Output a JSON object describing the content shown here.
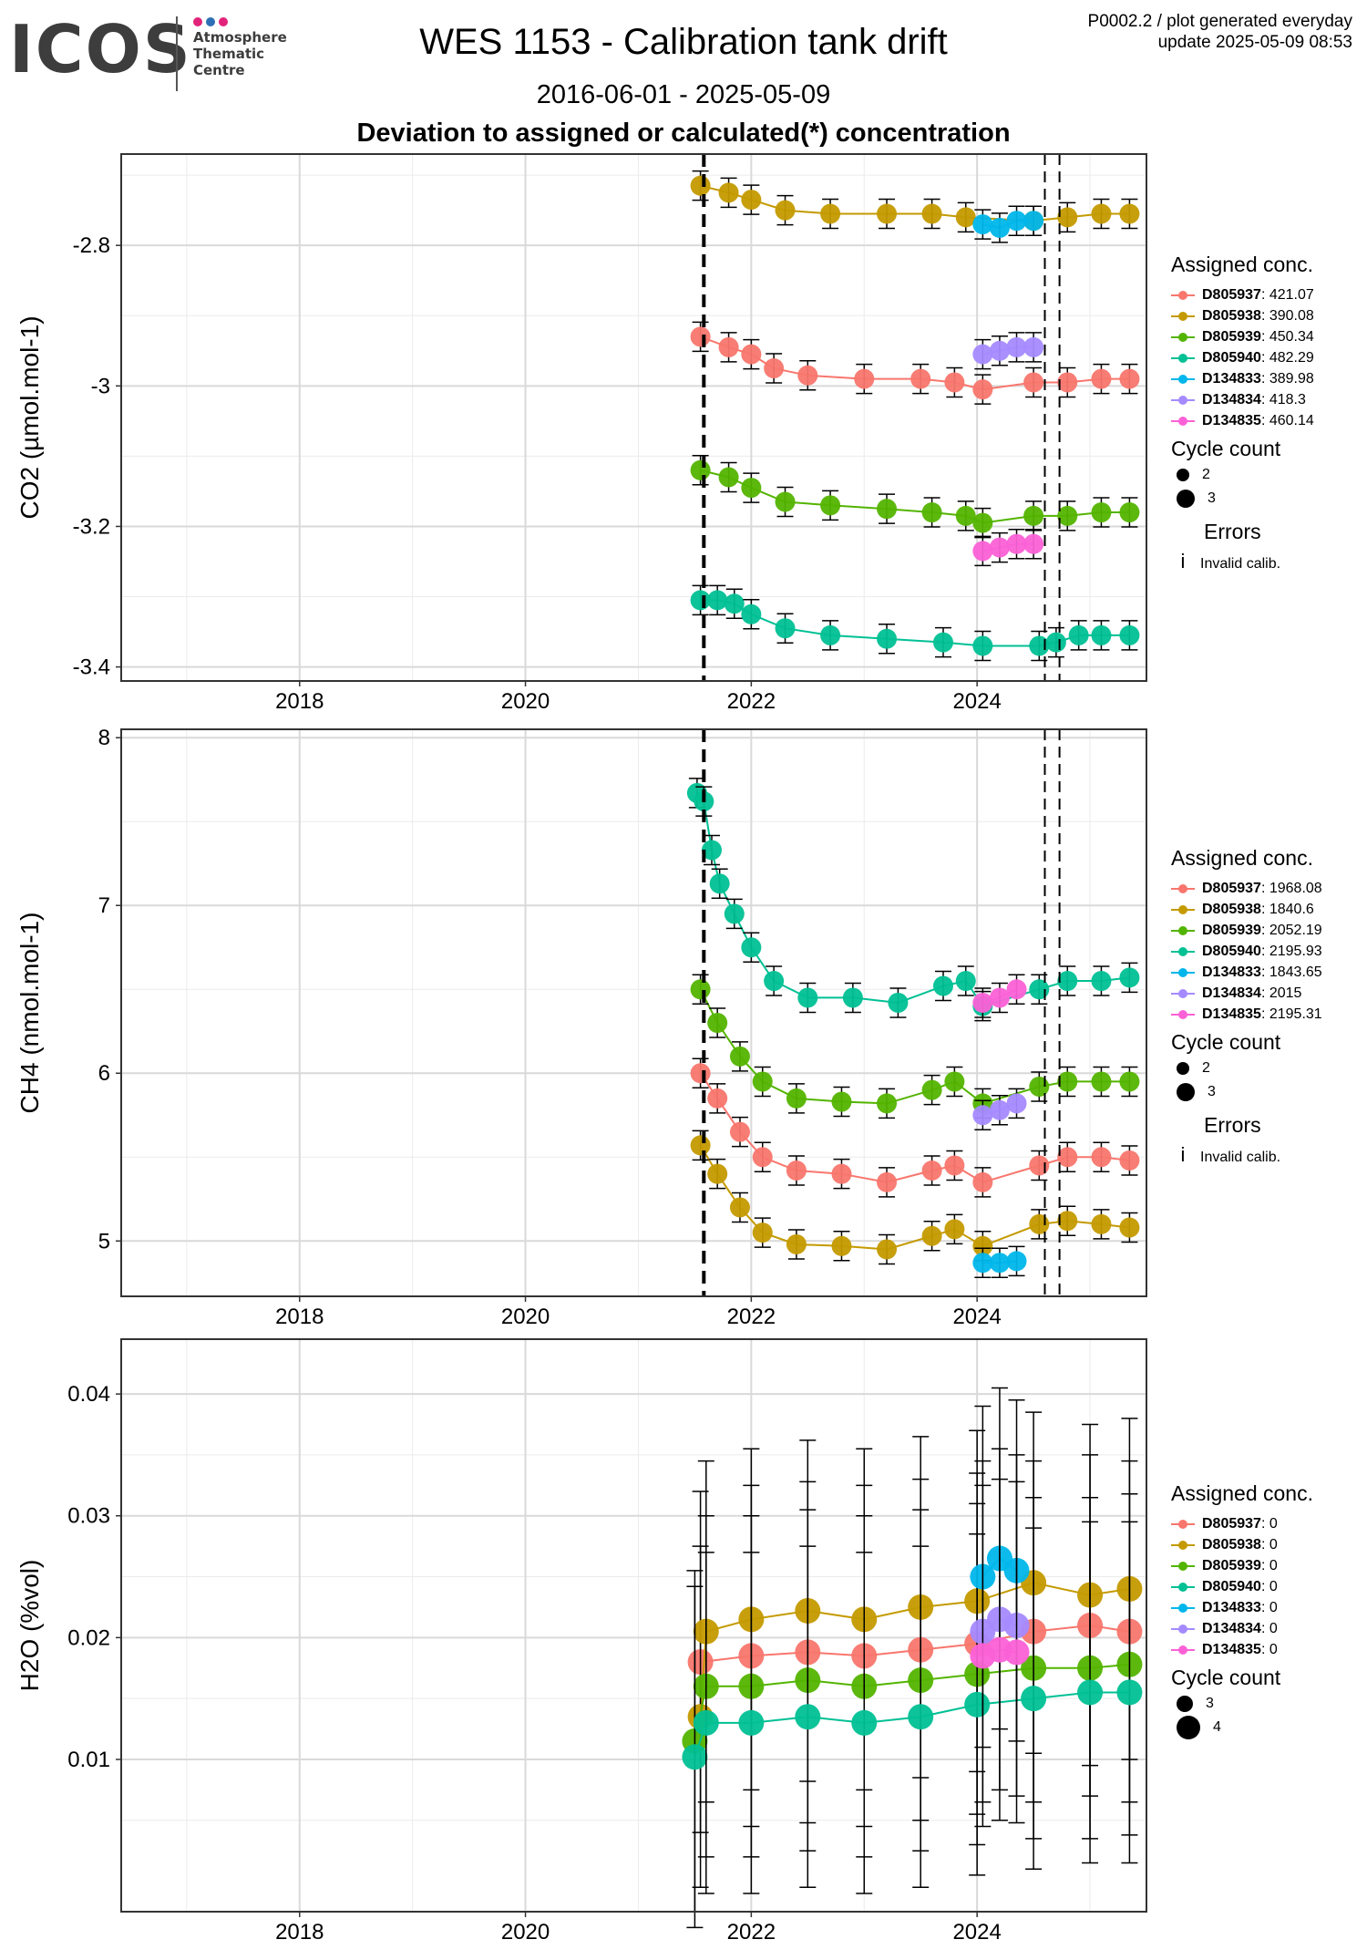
{
  "header": {
    "logo_text": "ICOS",
    "logo_sub": [
      "Atmosphere",
      "Thematic",
      "Centre"
    ],
    "title": "WES 1153 - Calibration tank drift",
    "date_range": "2016-06-01 - 2025-05-09",
    "subtitle": "Deviation to assigned or calculated(*) concentration",
    "info_line1": "P0002.2 / plot generated everyday",
    "info_line2": "update  2025-05-09 08:53"
  },
  "colors": {
    "D805937": "#F8766D",
    "D805938": "#C49A00",
    "D805939": "#53B400",
    "D805940": "#00C094",
    "D134833": "#00B6EB",
    "D134834": "#A58AFF",
    "D134835": "#FB61D7"
  },
  "chart_data": [
    {
      "type": "scatter",
      "id": "co2",
      "ylabel": "CO2 (µmol.mol-1)",
      "xticks": [
        2018,
        2020,
        2022,
        2024
      ],
      "yticks": [
        -2.8,
        -3.0,
        -3.2,
        -3.4
      ],
      "xlim": [
        2016.42,
        2025.5
      ],
      "ylim": [
        -3.42,
        -2.67
      ],
      "vlines": [
        {
          "x": 2021.58,
          "style": "thick"
        },
        {
          "x": 2024.6,
          "style": "thin"
        },
        {
          "x": 2024.73,
          "style": "thin"
        }
      ],
      "legend_title": "Assigned conc.",
      "cycle_title": "Cycle count",
      "cycle_values": [
        "2",
        "3"
      ],
      "errors_title": "Errors",
      "errors_glyph": "i",
      "errors_label": "Invalid calib.",
      "series": [
        {
          "name": "D805937",
          "assigned": "421.07",
          "points": [
            [
              2021.55,
              -2.93
            ],
            [
              2021.8,
              -2.945
            ],
            [
              2022.0,
              -2.955
            ],
            [
              2022.2,
              -2.975
            ],
            [
              2022.5,
              -2.985
            ],
            [
              2023.0,
              -2.99
            ],
            [
              2023.5,
              -2.99
            ],
            [
              2023.8,
              -2.995
            ],
            [
              2024.05,
              -3.005
            ],
            [
              2024.5,
              -2.995
            ],
            [
              2024.8,
              -2.995
            ],
            [
              2025.1,
              -2.99
            ],
            [
              2025.35,
              -2.99
            ]
          ]
        },
        {
          "name": "D805938",
          "assigned": "390.08",
          "points": [
            [
              2021.55,
              -2.715
            ],
            [
              2021.8,
              -2.725
            ],
            [
              2022.0,
              -2.735
            ],
            [
              2022.3,
              -2.75
            ],
            [
              2022.7,
              -2.755
            ],
            [
              2023.2,
              -2.755
            ],
            [
              2023.6,
              -2.755
            ],
            [
              2023.9,
              -2.76
            ],
            [
              2024.5,
              -2.765
            ],
            [
              2024.8,
              -2.76
            ],
            [
              2025.1,
              -2.755
            ],
            [
              2025.35,
              -2.755
            ]
          ]
        },
        {
          "name": "D805939",
          "assigned": "450.34",
          "points": [
            [
              2021.55,
              -3.12
            ],
            [
              2021.8,
              -3.13
            ],
            [
              2022.0,
              -3.145
            ],
            [
              2022.3,
              -3.165
            ],
            [
              2022.7,
              -3.17
            ],
            [
              2023.2,
              -3.175
            ],
            [
              2023.6,
              -3.18
            ],
            [
              2023.9,
              -3.185
            ],
            [
              2024.05,
              -3.195
            ],
            [
              2024.5,
              -3.185
            ],
            [
              2024.8,
              -3.185
            ],
            [
              2025.1,
              -3.18
            ],
            [
              2025.35,
              -3.18
            ]
          ]
        },
        {
          "name": "D805940",
          "assigned": "482.29",
          "points": [
            [
              2021.55,
              -3.305
            ],
            [
              2021.7,
              -3.305
            ],
            [
              2021.85,
              -3.31
            ],
            [
              2022.0,
              -3.325
            ],
            [
              2022.3,
              -3.345
            ],
            [
              2022.7,
              -3.355
            ],
            [
              2023.2,
              -3.36
            ],
            [
              2023.7,
              -3.365
            ],
            [
              2024.05,
              -3.37
            ],
            [
              2024.55,
              -3.37
            ],
            [
              2024.7,
              -3.365
            ],
            [
              2024.9,
              -3.355
            ],
            [
              2025.1,
              -3.355
            ],
            [
              2025.35,
              -3.355
            ]
          ]
        },
        {
          "name": "D134833",
          "assigned": "389.98",
          "points": [
            [
              2024.05,
              -2.77
            ],
            [
              2024.2,
              -2.775
            ],
            [
              2024.35,
              -2.765
            ],
            [
              2024.5,
              -2.765
            ]
          ]
        },
        {
          "name": "D134834",
          "assigned": "418.3",
          "points": [
            [
              2024.05,
              -2.955
            ],
            [
              2024.2,
              -2.95
            ],
            [
              2024.35,
              -2.945
            ],
            [
              2024.5,
              -2.945
            ]
          ]
        },
        {
          "name": "D134835",
          "assigned": "460.14",
          "points": [
            [
              2024.05,
              -3.235
            ],
            [
              2024.2,
              -3.23
            ],
            [
              2024.35,
              -3.225
            ],
            [
              2024.5,
              -3.225
            ]
          ]
        }
      ]
    },
    {
      "type": "scatter",
      "id": "ch4",
      "ylabel": "CH4 (nmol.mol-1)",
      "xticks": [
        2018,
        2020,
        2022,
        2024
      ],
      "yticks": [
        8,
        7,
        6,
        5
      ],
      "xlim": [
        2016.42,
        2025.5
      ],
      "ylim": [
        4.67,
        8.05
      ],
      "vlines": [
        {
          "x": 2021.58,
          "style": "thick"
        },
        {
          "x": 2024.6,
          "style": "thin"
        },
        {
          "x": 2024.73,
          "style": "thin"
        }
      ],
      "legend_title": "Assigned conc.",
      "cycle_title": "Cycle count",
      "cycle_values": [
        "2",
        "3"
      ],
      "errors_title": "Errors",
      "errors_glyph": "i",
      "errors_label": "Invalid calib.",
      "series": [
        {
          "name": "D805937",
          "assigned": "1968.08",
          "points": [
            [
              2021.55,
              6.0
            ],
            [
              2021.7,
              5.85
            ],
            [
              2021.9,
              5.65
            ],
            [
              2022.1,
              5.5
            ],
            [
              2022.4,
              5.42
            ],
            [
              2022.8,
              5.4
            ],
            [
              2023.2,
              5.35
            ],
            [
              2023.6,
              5.42
            ],
            [
              2023.8,
              5.45
            ],
            [
              2024.05,
              5.35
            ],
            [
              2024.55,
              5.45
            ],
            [
              2024.8,
              5.5
            ],
            [
              2025.1,
              5.5
            ],
            [
              2025.35,
              5.48
            ]
          ]
        },
        {
          "name": "D805938",
          "assigned": "1840.6",
          "points": [
            [
              2021.55,
              5.57
            ],
            [
              2021.7,
              5.4
            ],
            [
              2021.9,
              5.2
            ],
            [
              2022.1,
              5.05
            ],
            [
              2022.4,
              4.98
            ],
            [
              2022.8,
              4.97
            ],
            [
              2023.2,
              4.95
            ],
            [
              2023.6,
              5.03
            ],
            [
              2023.8,
              5.07
            ],
            [
              2024.05,
              4.97
            ],
            [
              2024.55,
              5.1
            ],
            [
              2024.8,
              5.12
            ],
            [
              2025.1,
              5.1
            ],
            [
              2025.35,
              5.08
            ]
          ]
        },
        {
          "name": "D805939",
          "assigned": "2052.19",
          "points": [
            [
              2021.55,
              6.5
            ],
            [
              2021.7,
              6.3
            ],
            [
              2021.9,
              6.1
            ],
            [
              2022.1,
              5.95
            ],
            [
              2022.4,
              5.85
            ],
            [
              2022.8,
              5.83
            ],
            [
              2023.2,
              5.82
            ],
            [
              2023.6,
              5.9
            ],
            [
              2023.8,
              5.95
            ],
            [
              2024.05,
              5.82
            ],
            [
              2024.55,
              5.92
            ],
            [
              2024.8,
              5.95
            ],
            [
              2025.1,
              5.95
            ],
            [
              2025.35,
              5.95
            ]
          ]
        },
        {
          "name": "D805940",
          "assigned": "2195.93",
          "points": [
            [
              2021.52,
              7.67
            ],
            [
              2021.58,
              7.62
            ],
            [
              2021.65,
              7.33
            ],
            [
              2021.72,
              7.13
            ],
            [
              2021.85,
              6.95
            ],
            [
              2022.0,
              6.75
            ],
            [
              2022.2,
              6.55
            ],
            [
              2022.5,
              6.45
            ],
            [
              2022.9,
              6.45
            ],
            [
              2023.3,
              6.42
            ],
            [
              2023.7,
              6.52
            ],
            [
              2023.9,
              6.55
            ],
            [
              2024.05,
              6.4
            ],
            [
              2024.55,
              6.5
            ],
            [
              2024.8,
              6.55
            ],
            [
              2025.1,
              6.55
            ],
            [
              2025.35,
              6.57
            ]
          ]
        },
        {
          "name": "D134833",
          "assigned": "1843.65",
          "points": [
            [
              2024.05,
              4.87
            ],
            [
              2024.2,
              4.87
            ],
            [
              2024.35,
              4.88
            ]
          ]
        },
        {
          "name": "D134834",
          "assigned": "2015",
          "points": [
            [
              2024.05,
              5.75
            ],
            [
              2024.2,
              5.78
            ],
            [
              2024.35,
              5.82
            ]
          ]
        },
        {
          "name": "D134835",
          "assigned": "2195.31",
          "points": [
            [
              2024.05,
              6.42
            ],
            [
              2024.2,
              6.45
            ],
            [
              2024.35,
              6.5
            ]
          ]
        }
      ]
    },
    {
      "type": "scatter",
      "id": "h2o",
      "ylabel": "H2O (%vol)",
      "xticks": [
        2018,
        2020,
        2022,
        2024
      ],
      "yticks": [
        0.04,
        0.03,
        0.02,
        0.01
      ],
      "xlim": [
        2016.42,
        2025.5
      ],
      "ylim": [
        -0.0025,
        0.0445
      ],
      "vlines": [],
      "legend_title": "Assigned conc.",
      "cycle_title": "Cycle count",
      "cycle_values": [
        "3",
        "4"
      ],
      "series": [
        {
          "name": "D805937",
          "assigned": "0",
          "points": [
            [
              2021.55,
              0.018
            ],
            [
              2022.0,
              0.0185
            ],
            [
              2022.5,
              0.0188
            ],
            [
              2023.0,
              0.0185
            ],
            [
              2023.5,
              0.019
            ],
            [
              2024.0,
              0.0195
            ],
            [
              2024.5,
              0.0205
            ],
            [
              2025.0,
              0.021
            ],
            [
              2025.35,
              0.0205
            ]
          ]
        },
        {
          "name": "D805938",
          "assigned": "0",
          "points": [
            [
              2021.55,
              0.0135
            ],
            [
              2021.6,
              0.0205
            ],
            [
              2022.0,
              0.0215
            ],
            [
              2022.5,
              0.0222
            ],
            [
              2023.0,
              0.0215
            ],
            [
              2023.5,
              0.0225
            ],
            [
              2024.0,
              0.023
            ],
            [
              2024.5,
              0.0245
            ],
            [
              2025.0,
              0.0235
            ],
            [
              2025.35,
              0.024
            ]
          ]
        },
        {
          "name": "D805939",
          "assigned": "0",
          "points": [
            [
              2021.5,
              0.0115
            ],
            [
              2021.6,
              0.016
            ],
            [
              2022.0,
              0.016
            ],
            [
              2022.5,
              0.0165
            ],
            [
              2023.0,
              0.016
            ],
            [
              2023.5,
              0.0165
            ],
            [
              2024.0,
              0.017
            ],
            [
              2024.5,
              0.0175
            ],
            [
              2025.0,
              0.0175
            ],
            [
              2025.35,
              0.0178
            ]
          ]
        },
        {
          "name": "D805940",
          "assigned": "0",
          "points": [
            [
              2021.5,
              0.0102
            ],
            [
              2021.6,
              0.013
            ],
            [
              2022.0,
              0.013
            ],
            [
              2022.5,
              0.0135
            ],
            [
              2023.0,
              0.013
            ],
            [
              2023.5,
              0.0135
            ],
            [
              2024.0,
              0.0145
            ],
            [
              2024.5,
              0.015
            ],
            [
              2025.0,
              0.0155
            ],
            [
              2025.35,
              0.0155
            ]
          ]
        },
        {
          "name": "D134833",
          "assigned": "0",
          "points": [
            [
              2024.05,
              0.025
            ],
            [
              2024.2,
              0.0265
            ],
            [
              2024.35,
              0.0255
            ]
          ]
        },
        {
          "name": "D134834",
          "assigned": "0",
          "points": [
            [
              2024.05,
              0.0205
            ],
            [
              2024.2,
              0.0215
            ],
            [
              2024.35,
              0.021
            ]
          ]
        },
        {
          "name": "D134835",
          "assigned": "0",
          "points": [
            [
              2024.05,
              0.0185
            ],
            [
              2024.2,
              0.019
            ],
            [
              2024.35,
              0.0188
            ]
          ]
        }
      ]
    }
  ]
}
